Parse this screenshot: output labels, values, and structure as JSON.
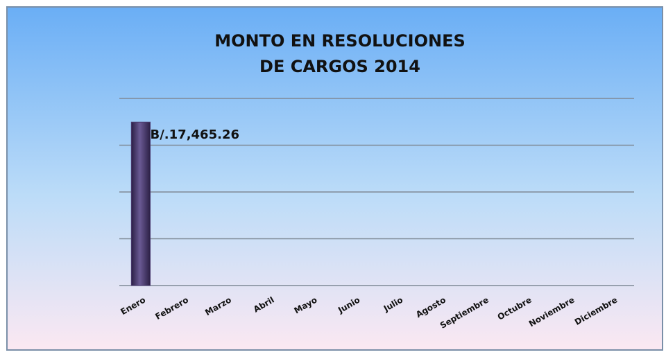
{
  "chart_data": {
    "type": "bar",
    "title": "MONTO EN RESOLUCIONES",
    "subtitle": "DE CARGOS 2014",
    "categories": [
      "Enero",
      "Febrero",
      "Marzo",
      "Abril",
      "Mayo",
      "Junio",
      "Julio",
      "Agosto",
      "Septiembre",
      "Octubre",
      "Noviembre",
      "Diciembre"
    ],
    "values": [
      17465.26,
      null,
      null,
      null,
      null,
      null,
      null,
      null,
      null,
      null,
      null,
      null
    ],
    "value_labels": [
      "B/.17,465.26",
      null,
      null,
      null,
      null,
      null,
      null,
      null,
      null,
      null,
      null,
      null
    ],
    "color": "#4a3a6e",
    "ylim": [
      0,
      20000
    ],
    "yticks": [
      0,
      5000,
      10000,
      15000,
      20000
    ],
    "grid": true
  }
}
